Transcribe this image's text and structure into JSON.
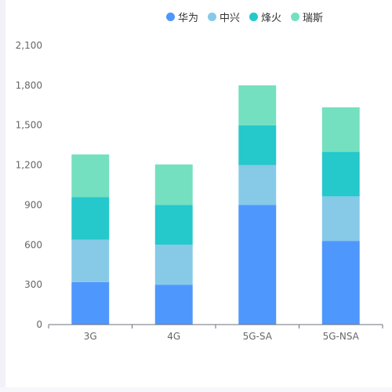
{
  "chart_data": {
    "type": "bar",
    "stacked": true,
    "categories": [
      "3G",
      "4G",
      "5G-SA",
      "5G-NSA"
    ],
    "series": [
      {
        "name": "华为",
        "color": "#4e97fd",
        "values": [
          320,
          300,
          900,
          630
        ]
      },
      {
        "name": "中兴",
        "color": "#86cae8",
        "values": [
          320,
          300,
          300,
          335
        ]
      },
      {
        "name": "烽火",
        "color": "#25c8cb",
        "values": [
          320,
          300,
          300,
          335
        ]
      },
      {
        "name": "瑞斯",
        "color": "#74e0bf",
        "values": [
          320,
          305,
          300,
          335
        ]
      }
    ],
    "yticks": [
      "0",
      "300",
      "600",
      "900",
      "1,200",
      "1,500",
      "1,800",
      "2,100"
    ],
    "ylim": [
      0,
      2100
    ],
    "grid": false,
    "legend_position": "top-right",
    "title": "",
    "xlabel": "",
    "ylabel": ""
  }
}
